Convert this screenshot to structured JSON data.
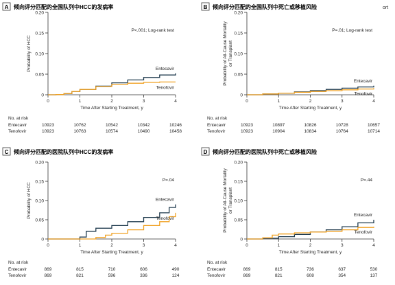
{
  "legend_names": [
    "Entecavir",
    "Tenofovir"
  ],
  "colors": {
    "entecavir": "#1f3a4d",
    "tenofovir": "#f0a020",
    "axis": "#333333"
  },
  "chart_data": [
    {
      "panel": "A",
      "type": "line",
      "title": "倾向评分匹配的全国队列中HCC的发病率",
      "xlabel": "Time After Starting Treatment, y",
      "ylabel": "Probability of HCC",
      "xlim": [
        0,
        4
      ],
      "ylim": [
        0,
        0.2
      ],
      "xticks": [
        "0",
        "1",
        "2",
        "3",
        "4"
      ],
      "yticks": [
        "0",
        "0.05",
        "0.10",
        "0.15",
        "0.20"
      ],
      "annotation": "P<.001; Log-rank test",
      "series_labels": [
        "Entecavir",
        "Tenofovir"
      ],
      "series": [
        {
          "name": "Entecavir",
          "x": [
            0,
            0.25,
            0.5,
            0.75,
            1.0,
            1.5,
            2.0,
            2.5,
            3.0,
            3.5,
            4.0
          ],
          "y": [
            0,
            0.0005,
            0.003,
            0.008,
            0.013,
            0.021,
            0.029,
            0.036,
            0.042,
            0.048,
            0.052
          ]
        },
        {
          "name": "Tenofovir",
          "x": [
            0,
            0.25,
            0.5,
            0.75,
            1.0,
            1.5,
            2.0,
            2.5,
            3.0,
            3.5,
            4.0
          ],
          "y": [
            0,
            0.0005,
            0.003,
            0.008,
            0.013,
            0.02,
            0.025,
            0.028,
            0.03,
            0.031,
            0.031
          ]
        }
      ],
      "risk_table": {
        "heading": "No. at risk",
        "rows": [
          {
            "name": "Entecavir",
            "values": [
              "10923",
              "10762",
              "10542",
              "10342",
              "10246"
            ]
          },
          {
            "name": "Tenofovir",
            "values": [
              "10923",
              "10763",
              "10574",
              "10490",
              "10458"
            ]
          }
        ]
      }
    },
    {
      "panel": "B",
      "type": "line",
      "title": "倾向评分匹配的全国队列中死亡或移植风险",
      "title_suffix": "ort",
      "xlabel": "Time After Starting Treatment, y",
      "ylabel": "Probability of All-Cause Mortality or Transplant",
      "xlim": [
        0,
        4
      ],
      "ylim": [
        0,
        0.2
      ],
      "xticks": [
        "0",
        "1",
        "2",
        "3",
        "4"
      ],
      "yticks": [
        "0",
        "0.05",
        "0.10",
        "0.15",
        "0.20"
      ],
      "annotation": "P=.01; Log-rank test",
      "series_labels": [
        "Entecavir",
        "Tenofovir"
      ],
      "series": [
        {
          "name": "Entecavir",
          "x": [
            0,
            0.5,
            1.0,
            1.5,
            2.0,
            2.5,
            3.0,
            3.5,
            4.0
          ],
          "y": [
            0,
            0.002,
            0.004,
            0.007,
            0.01,
            0.013,
            0.016,
            0.019,
            0.022
          ]
        },
        {
          "name": "Tenofovir",
          "x": [
            0,
            0.5,
            1.0,
            1.5,
            2.0,
            2.5,
            3.0,
            3.5,
            4.0
          ],
          "y": [
            0,
            0.002,
            0.004,
            0.006,
            0.008,
            0.01,
            0.012,
            0.014,
            0.016
          ]
        }
      ],
      "risk_table": {
        "heading": "No. at risk",
        "rows": [
          {
            "name": "Entecavir",
            "values": [
              "10923",
              "10897",
              "10826",
              "10728",
              "10657"
            ]
          },
          {
            "name": "Tenofovir",
            "values": [
              "10923",
              "10904",
              "10834",
              "10764",
              "10714"
            ]
          }
        ]
      }
    },
    {
      "panel": "C",
      "type": "line",
      "title": "倾向评分匹配的医院队列中HCC的发病率",
      "xlabel": "Time After Starting Treatment, y",
      "ylabel": "Probability of HCC",
      "xlim": [
        0,
        4
      ],
      "ylim": [
        0,
        0.2
      ],
      "xticks": [
        "0",
        "1",
        "2",
        "3",
        "4"
      ],
      "yticks": [
        "0",
        "0.05",
        "0.10",
        "0.15",
        "0.20"
      ],
      "annotation": "P=.04",
      "series_labels": [
        "Entecavir",
        "Tenofovir"
      ],
      "series": [
        {
          "name": "Entecavir",
          "x": [
            0,
            0.9,
            1.0,
            1.2,
            1.5,
            2.0,
            2.5,
            3.0,
            3.5,
            3.8,
            4.0
          ],
          "y": [
            0,
            0,
            0.005,
            0.02,
            0.028,
            0.035,
            0.045,
            0.056,
            0.068,
            0.082,
            0.09
          ]
        },
        {
          "name": "Tenofovir",
          "x": [
            0,
            1.0,
            1.5,
            1.8,
            2.0,
            2.5,
            3.0,
            3.5,
            3.8,
            4.0
          ],
          "y": [
            0,
            0,
            0.004,
            0.01,
            0.015,
            0.024,
            0.035,
            0.045,
            0.058,
            0.068
          ]
        }
      ],
      "risk_table": {
        "heading": "No. at risk",
        "rows": [
          {
            "name": "Entecavir",
            "values": [
              "869",
              "815",
              "710",
              "606",
              "490"
            ]
          },
          {
            "name": "Tenofovir",
            "values": [
              "869",
              "821",
              "596",
              "336",
              "124"
            ]
          }
        ]
      }
    },
    {
      "panel": "D",
      "type": "line",
      "title": "倾向评分匹配的医院队列中死亡或移植风险",
      "xlabel": "Time After Starting Treatment, y",
      "ylabel": "Probability of All-Cause Mortality or Transplant",
      "xlim": [
        0,
        4
      ],
      "ylim": [
        0,
        0.2
      ],
      "xticks": [
        "0",
        "1",
        "2",
        "3",
        "4"
      ],
      "yticks": [
        "0",
        "0.05",
        "0.10",
        "0.15",
        "0.20"
      ],
      "annotation": "P=.44",
      "series_labels": [
        "Entecavir",
        "Tenofovir"
      ],
      "series": [
        {
          "name": "Entecavir",
          "x": [
            0,
            0.5,
            1.0,
            1.5,
            2.0,
            2.5,
            3.0,
            3.5,
            4.0
          ],
          "y": [
            0,
            0.002,
            0.006,
            0.012,
            0.018,
            0.024,
            0.032,
            0.042,
            0.05
          ]
        },
        {
          "name": "Tenofovir",
          "x": [
            0,
            0.5,
            0.8,
            1.0,
            1.5,
            2.0,
            2.5,
            3.0,
            3.5,
            4.0
          ],
          "y": [
            0,
            0.003,
            0.01,
            0.013,
            0.016,
            0.018,
            0.02,
            0.024,
            0.03,
            0.032
          ]
        }
      ],
      "risk_table": {
        "heading": "No. at risk",
        "rows": [
          {
            "name": "Entecavir",
            "values": [
              "869",
              "815",
              "736",
              "637",
              "530"
            ]
          },
          {
            "name": "Tenofovir",
            "values": [
              "869",
              "821",
              "608",
              "354",
              "137"
            ]
          }
        ]
      }
    }
  ]
}
